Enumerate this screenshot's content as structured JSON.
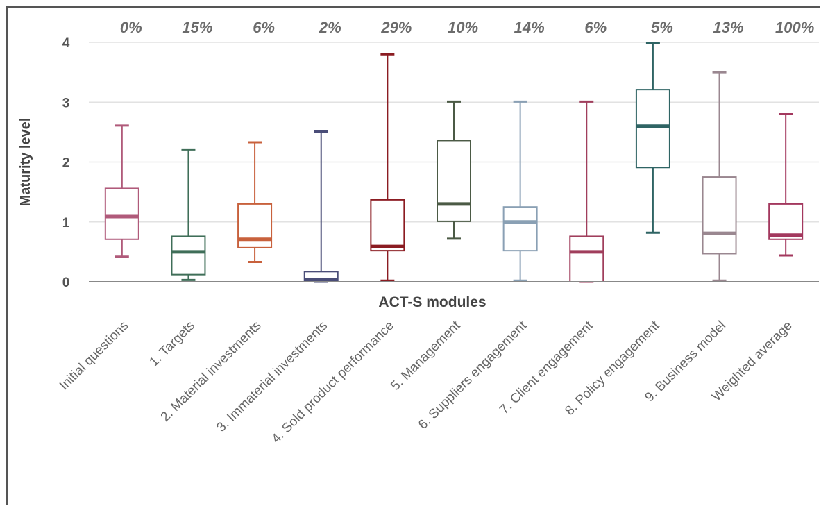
{
  "chart_data": {
    "type": "boxplot",
    "ylabel": "Maturity level",
    "xlabel": "ACT-S modules",
    "ylim": [
      0,
      4
    ],
    "yticks": [
      0,
      1,
      2,
      3,
      4
    ],
    "grid": "horizontal",
    "categories": [
      "Initial questions",
      "1. Targets",
      "2. Material investments",
      "3. Immaterial investments",
      "4. Sold product performance",
      "5. Management",
      "6. Suppliers engagement",
      "7. Client engagement",
      "8. Policy engagement",
      "9. Business model",
      "Weighted average"
    ],
    "weights": [
      "0%",
      "15%",
      "6%",
      "2%",
      "29%",
      "10%",
      "14%",
      "6%",
      "5%",
      "13%",
      "100%"
    ],
    "boxes": [
      {
        "min": 0.42,
        "q1": 0.71,
        "median": 1.09,
        "q3": 1.56,
        "max": 2.61
      },
      {
        "min": 0.03,
        "q1": 0.12,
        "median": 0.5,
        "q3": 0.76,
        "max": 2.21
      },
      {
        "min": 0.33,
        "q1": 0.57,
        "median": 0.71,
        "q3": 1.3,
        "max": 2.33
      },
      {
        "min": 0.0,
        "q1": 0.02,
        "median": 0.03,
        "q3": 0.17,
        "max": 2.51
      },
      {
        "min": 0.02,
        "q1": 0.52,
        "median": 0.59,
        "q3": 1.37,
        "max": 3.8
      },
      {
        "min": 0.72,
        "q1": 1.01,
        "median": 1.3,
        "q3": 2.36,
        "max": 3.01
      },
      {
        "min": 0.02,
        "q1": 0.52,
        "median": 1.0,
        "q3": 1.25,
        "max": 3.01
      },
      {
        "min": 0.0,
        "q1": 0.0,
        "median": 0.5,
        "q3": 0.76,
        "max": 3.01
      },
      {
        "min": 0.82,
        "q1": 1.91,
        "median": 2.6,
        "q3": 3.21,
        "max": 3.99
      },
      {
        "min": 0.02,
        "q1": 0.47,
        "median": 0.81,
        "q3": 1.75,
        "max": 3.5
      },
      {
        "min": 0.44,
        "q1": 0.71,
        "median": 0.78,
        "q3": 1.3,
        "max": 2.8
      }
    ],
    "colors": [
      "#b05a7a",
      "#3f6e58",
      "#c8613c",
      "#4a4d78",
      "#8b1c22",
      "#4b5a45",
      "#8aa0b4",
      "#a03e5c",
      "#2f6464",
      "#9a8790",
      "#a3385e"
    ]
  }
}
